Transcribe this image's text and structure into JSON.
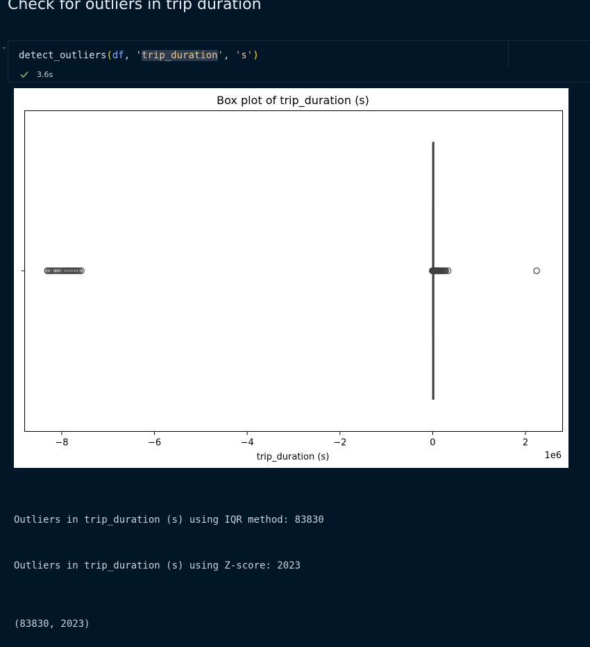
{
  "heading": "Check for outliers in trip duration",
  "cell": {
    "code": {
      "fn": "detect_outliers",
      "arg_var": "df",
      "arg_col": "trip_duration",
      "arg_unit": "s"
    },
    "exec_time": "3.6s"
  },
  "chart_data": {
    "type": "box",
    "title": "Box plot of trip_duration (s)",
    "xlabel": "trip_duration (s)",
    "x_offset_label": "1e6",
    "xlim": [
      -8.8,
      2.8
    ],
    "x_unit_multiplier": 1000000,
    "xticks": [
      -8,
      -6,
      -4,
      -2,
      0,
      2
    ],
    "xtick_labels": [
      "−8",
      "−6",
      "−4",
      "−2",
      "0",
      "2"
    ],
    "box": {
      "q1": 0.0004,
      "median": 0.0007,
      "q3": 0.0011,
      "whisker_low": 0.0,
      "whisker_high": 0.0022
    },
    "outliers": [
      -8.31,
      -8.28,
      -8.25,
      -8.22,
      -8.18,
      -8.14,
      -8.1,
      -8.06,
      -8.02,
      -7.98,
      -7.95,
      -7.92,
      -7.89,
      -7.86,
      -7.83,
      -7.8,
      -7.77,
      -7.74,
      -7.71,
      -7.68,
      -7.65,
      -7.62,
      -7.58,
      -0.01,
      0.0,
      0.01,
      0.02,
      0.03,
      0.04,
      0.05,
      0.06,
      0.07,
      0.08,
      0.09,
      0.1,
      0.11,
      0.12,
      0.13,
      0.14,
      0.15,
      0.16,
      0.17,
      0.18,
      0.2,
      0.22,
      0.24,
      0.26,
      0.28,
      0.33,
      2.24
    ],
    "grid": false,
    "colors": {
      "line": "#3f3f3f",
      "box_fill": "#1f77b4"
    }
  },
  "stdout": [
    "Outliers in trip_duration (s) using IQR method: 83830",
    "Outliers in trip_duration (s) using Z-score: 2023"
  ],
  "result": "(83830, 2023)"
}
